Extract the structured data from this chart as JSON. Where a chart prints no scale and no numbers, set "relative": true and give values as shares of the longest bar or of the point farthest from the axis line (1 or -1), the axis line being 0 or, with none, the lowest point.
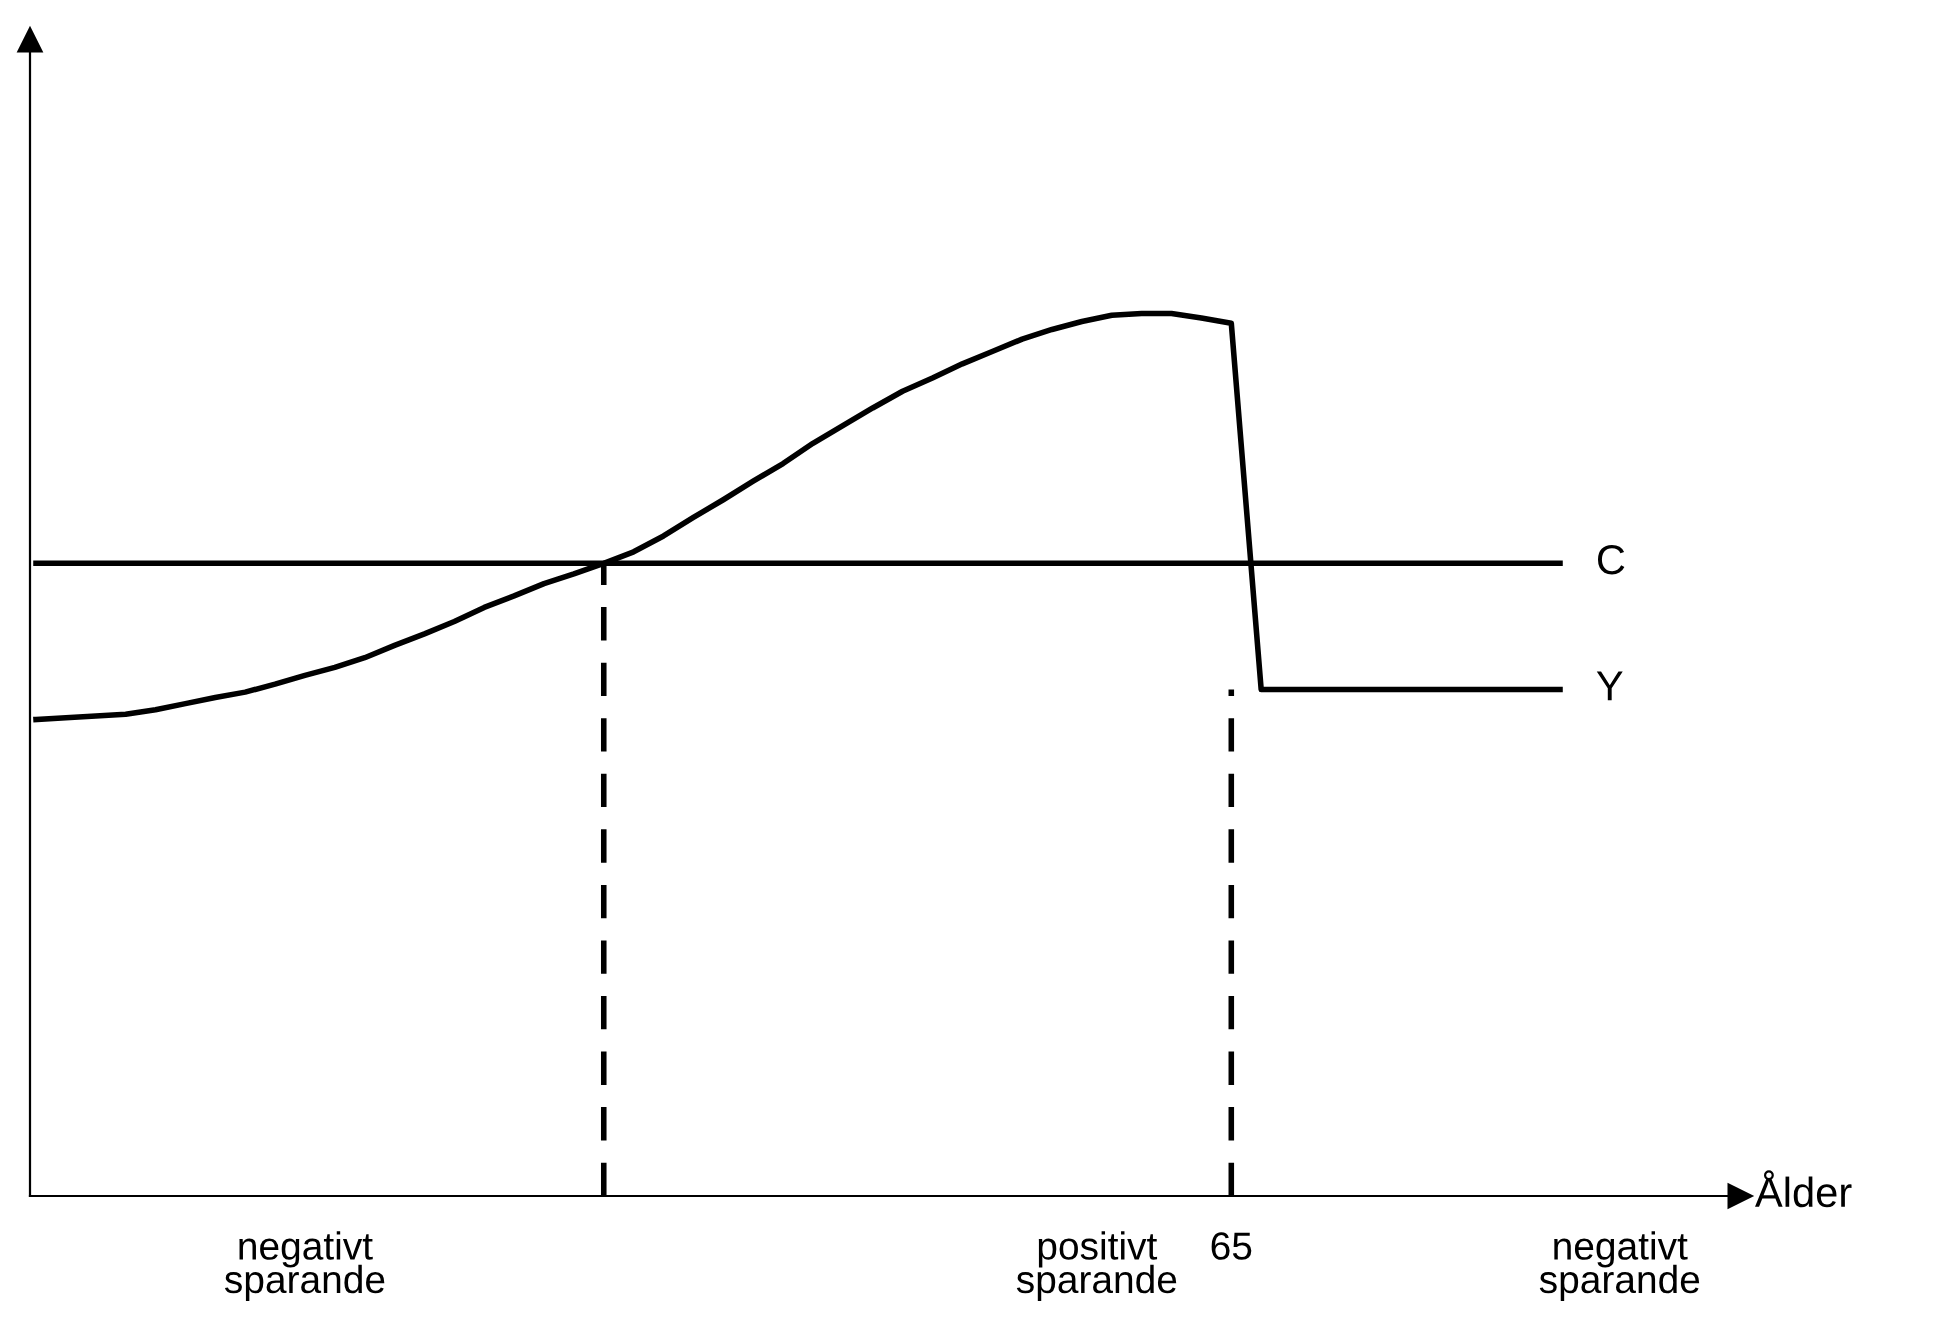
{
  "chart_data": {
    "type": "line",
    "relative": true,
    "xlabel": "Ålder",
    "categories": [
      null,
      null,
      null,
      null,
      null,
      null,
      null,
      null,
      null,
      null,
      null,
      null,
      null,
      null,
      null,
      null,
      null,
      null,
      null,
      null,
      null,
      null,
      null,
      null,
      null,
      null,
      null,
      null,
      null,
      null,
      null,
      null,
      null,
      null,
      null,
      null,
      null,
      null,
      null,
      null,
      null,
      null,
      null,
      null,
      null,
      null,
      null,
      null,
      null,
      null,
      null,
      null
    ],
    "series": [
      {
        "name": "C",
        "color": "#000000",
        "values": [
          0.717,
          0.717,
          0.717,
          0.717,
          0.717,
          0.717,
          0.717,
          0.717,
          0.717,
          0.717,
          0.717,
          0.717,
          0.717,
          0.717,
          0.717,
          0.717,
          0.717,
          0.717,
          0.717,
          0.717,
          0.717,
          0.717,
          0.717,
          0.717,
          0.717,
          0.717,
          0.717,
          0.717,
          0.717,
          0.717,
          0.717,
          0.717,
          0.717,
          0.717,
          0.717,
          0.717,
          0.717,
          0.717,
          0.717,
          0.717,
          0.717,
          0.717,
          0.717,
          0.717,
          0.717,
          0.717,
          0.717,
          0.717,
          0.717,
          0.717,
          0.717,
          0.717
        ]
      },
      {
        "name": "Y",
        "color": "#000000",
        "values": [
          0.54,
          0.542,
          0.544,
          0.546,
          0.551,
          0.558,
          0.565,
          0.571,
          0.58,
          0.59,
          0.599,
          0.61,
          0.624,
          0.637,
          0.651,
          0.667,
          0.68,
          0.694,
          0.705,
          0.717,
          0.73,
          0.748,
          0.769,
          0.789,
          0.81,
          0.83,
          0.853,
          0.873,
          0.893,
          0.912,
          0.927,
          0.943,
          0.957,
          0.971,
          0.982,
          0.991,
          0.998,
          1,
          1,
          0.995,
          0.989,
          0.574,
          0.574,
          0.574,
          0.574,
          0.574,
          0.574,
          0.574,
          0.574,
          0.574,
          0.574,
          0.574
        ]
      }
    ],
    "annotations": [
      "negativt\nsparande",
      "positivt\nsparande",
      "65",
      "negativt\nsparande"
    ],
    "legend": false,
    "marker": "none",
    "line_style": "solid"
  }
}
